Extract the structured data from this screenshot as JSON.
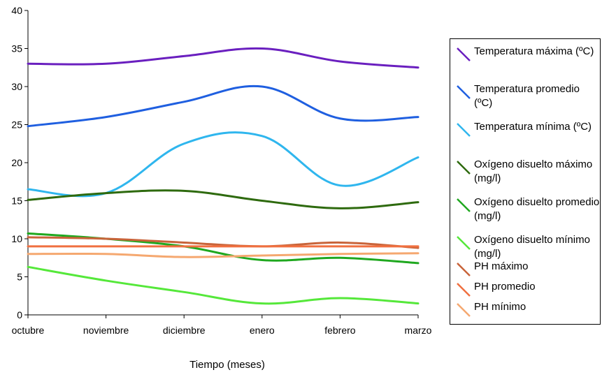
{
  "chart_data": {
    "type": "line",
    "xlabel": "Tiempo (meses)",
    "ylabel": "",
    "categories": [
      "octubre",
      "noviembre",
      "diciembre",
      "enero",
      "febrero",
      "marzo"
    ],
    "ylim": [
      0,
      40
    ],
    "yticks": [
      0,
      5,
      10,
      15,
      20,
      25,
      30,
      35,
      40
    ],
    "grid": false,
    "legend_position": "right",
    "series": [
      {
        "name": "Temperatura máxima (ºC)",
        "color": "#6a1fbf",
        "values": [
          33,
          33,
          34,
          35,
          33.3,
          32.5
        ]
      },
      {
        "name": "Temperatura promedio (ºC)",
        "color": "#1f5fe0",
        "values": [
          24.8,
          26,
          28,
          30,
          25.8,
          26
        ]
      },
      {
        "name": "Temperatura mínima (ºC)",
        "color": "#2fb6ee",
        "values": [
          16.5,
          16,
          22.5,
          23.5,
          17,
          20.7
        ]
      },
      {
        "name": "Oxígeno disuelto máximo (mg/l)",
        "color": "#2e6a0e",
        "values": [
          15.1,
          16,
          16.3,
          15,
          14,
          14.8
        ]
      },
      {
        "name": "Oxígeno disuelto promedio (mg/l)",
        "color": "#1fa81f",
        "values": [
          10.7,
          10,
          9,
          7.2,
          7.5,
          6.8
        ]
      },
      {
        "name": "Oxígeno disuelto mínimo (mg/l)",
        "color": "#55e83a",
        "values": [
          6.3,
          4.5,
          3,
          1.5,
          2.2,
          1.5
        ]
      },
      {
        "name": "PH máximo",
        "color": "#c8643a",
        "values": [
          10.2,
          10,
          9.5,
          9,
          9.5,
          8.8
        ]
      },
      {
        "name": "PH promedio",
        "color": "#f07040",
        "values": [
          9,
          9,
          9,
          9,
          9,
          9
        ]
      },
      {
        "name": "PH mínimo",
        "color": "#f5a870",
        "values": [
          8,
          8,
          7.6,
          7.8,
          8,
          8.1
        ]
      }
    ]
  }
}
